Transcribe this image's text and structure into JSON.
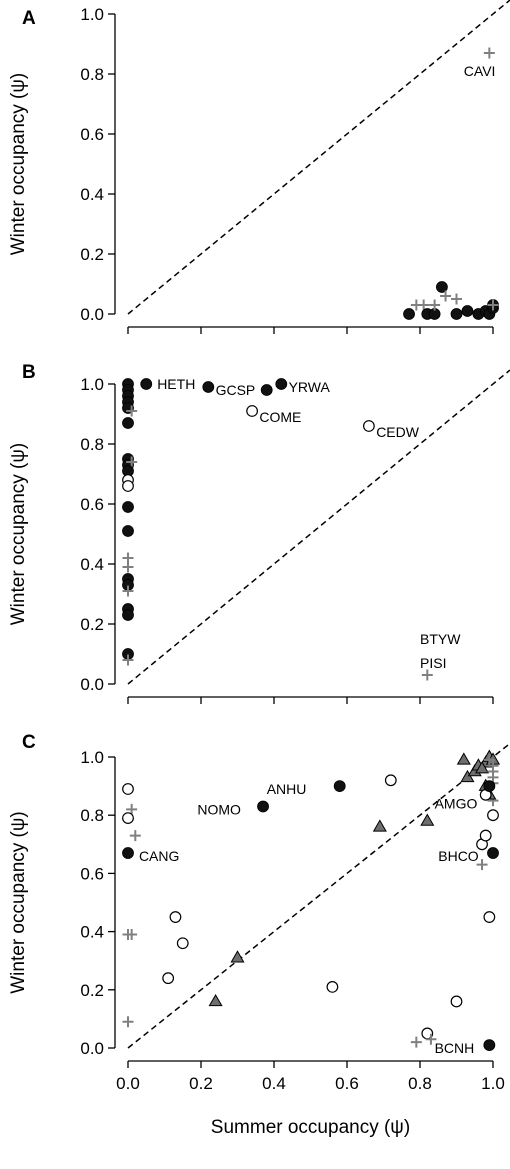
{
  "chart_data": {
    "type": "scatter",
    "xlabel": "Summer occupancy (ψ)",
    "ylabel": "Winter occupancy (ψ)",
    "xlim": [
      0,
      1
    ],
    "ylim": [
      0,
      1
    ],
    "x_ticks": [
      "0.0",
      "0.2",
      "0.4",
      "0.6",
      "0.8",
      "1.0"
    ],
    "y_ticks": [
      "0.0",
      "0.2",
      "0.4",
      "0.6",
      "0.8",
      "1.0"
    ],
    "reference_line": "1:1 dashed diagonal",
    "grid": false,
    "colors": {
      "filled": "#111111",
      "plus": "#808080",
      "triangle": "#6e6e6e",
      "open_stroke": "#000000"
    },
    "panels": [
      {
        "letter": "A",
        "points": [
          {
            "marker": "plus",
            "x": 0.99,
            "y": 0.87
          },
          {
            "marker": "filled",
            "x": 0.77,
            "y": 0.0
          },
          {
            "marker": "plus",
            "x": 0.79,
            "y": 0.03
          },
          {
            "marker": "plus",
            "x": 0.81,
            "y": 0.03
          },
          {
            "marker": "filled",
            "x": 0.82,
            "y": 0.0
          },
          {
            "marker": "filled",
            "x": 0.84,
            "y": 0.0
          },
          {
            "marker": "plus",
            "x": 0.84,
            "y": 0.03
          },
          {
            "marker": "filled",
            "x": 0.86,
            "y": 0.09
          },
          {
            "marker": "plus",
            "x": 0.87,
            "y": 0.06
          },
          {
            "marker": "plus",
            "x": 0.9,
            "y": 0.05
          },
          {
            "marker": "filled",
            "x": 0.9,
            "y": 0.0
          },
          {
            "marker": "filled",
            "x": 0.93,
            "y": 0.01
          },
          {
            "marker": "filled",
            "x": 0.96,
            "y": 0.0
          },
          {
            "marker": "filled",
            "x": 0.98,
            "y": 0.01
          },
          {
            "marker": "filled",
            "x": 0.99,
            "y": 0.0
          },
          {
            "marker": "filled",
            "x": 1.0,
            "y": 0.02
          },
          {
            "marker": "filled",
            "x": 1.0,
            "y": 0.03
          },
          {
            "marker": "plus",
            "x": 1.0,
            "y": 0.03
          }
        ],
        "labels": [
          {
            "text": "CAVI",
            "x": 0.92,
            "y": 0.81
          }
        ]
      },
      {
        "letter": "B",
        "points": [
          {
            "marker": "filled",
            "x": 0.0,
            "y": 1.0
          },
          {
            "marker": "filled",
            "x": 0.0,
            "y": 0.98
          },
          {
            "marker": "filled",
            "x": 0.0,
            "y": 0.96
          },
          {
            "marker": "filled",
            "x": 0.0,
            "y": 0.94
          },
          {
            "marker": "filled",
            "x": 0.0,
            "y": 0.92
          },
          {
            "marker": "plus",
            "x": 0.01,
            "y": 0.91
          },
          {
            "marker": "filled",
            "x": 0.0,
            "y": 0.87
          },
          {
            "marker": "filled",
            "x": 0.0,
            "y": 0.75
          },
          {
            "marker": "filled",
            "x": 0.0,
            "y": 0.73
          },
          {
            "marker": "plus",
            "x": 0.01,
            "y": 0.74
          },
          {
            "marker": "filled",
            "x": 0.0,
            "y": 0.71
          },
          {
            "marker": "open",
            "x": 0.0,
            "y": 0.68
          },
          {
            "marker": "open",
            "x": 0.0,
            "y": 0.66
          },
          {
            "marker": "filled",
            "x": 0.0,
            "y": 0.59
          },
          {
            "marker": "filled",
            "x": 0.0,
            "y": 0.51
          },
          {
            "marker": "plus",
            "x": 0.0,
            "y": 0.42
          },
          {
            "marker": "plus",
            "x": 0.0,
            "y": 0.39
          },
          {
            "marker": "filled",
            "x": 0.0,
            "y": 0.35
          },
          {
            "marker": "filled",
            "x": 0.0,
            "y": 0.33
          },
          {
            "marker": "plus",
            "x": 0.0,
            "y": 0.31
          },
          {
            "marker": "filled",
            "x": 0.0,
            "y": 0.25
          },
          {
            "marker": "filled",
            "x": 0.0,
            "y": 0.23
          },
          {
            "marker": "filled",
            "x": 0.0,
            "y": 0.1
          },
          {
            "marker": "plus",
            "x": 0.0,
            "y": 0.08
          },
          {
            "marker": "filled",
            "x": 0.05,
            "y": 1.0
          },
          {
            "marker": "filled",
            "x": 0.22,
            "y": 0.99
          },
          {
            "marker": "filled",
            "x": 0.38,
            "y": 0.98
          },
          {
            "marker": "filled",
            "x": 0.42,
            "y": 1.0
          },
          {
            "marker": "open",
            "x": 0.34,
            "y": 0.91
          },
          {
            "marker": "open",
            "x": 0.66,
            "y": 0.86
          },
          {
            "marker": "plus",
            "x": 0.82,
            "y": 0.03
          }
        ],
        "labels": [
          {
            "text": "HETH",
            "x": 0.08,
            "y": 1.0
          },
          {
            "text": "GCSP",
            "x": 0.24,
            "y": 0.98
          },
          {
            "text": "YRWA",
            "x": 0.44,
            "y": 0.99
          },
          {
            "text": "COME",
            "x": 0.36,
            "y": 0.89
          },
          {
            "text": "CEDW",
            "x": 0.68,
            "y": 0.84
          },
          {
            "text": "BTYW",
            "x": 0.8,
            "y": 0.15
          },
          {
            "text": "PISI",
            "x": 0.8,
            "y": 0.07
          }
        ]
      },
      {
        "letter": "C",
        "points": [
          {
            "marker": "open",
            "x": 0.0,
            "y": 0.89
          },
          {
            "marker": "plus",
            "x": 0.01,
            "y": 0.82
          },
          {
            "marker": "open",
            "x": 0.0,
            "y": 0.79
          },
          {
            "marker": "plus",
            "x": 0.02,
            "y": 0.73
          },
          {
            "marker": "filled",
            "x": 0.0,
            "y": 0.67
          },
          {
            "marker": "plus",
            "x": 0.0,
            "y": 0.39
          },
          {
            "marker": "plus",
            "x": 0.01,
            "y": 0.39
          },
          {
            "marker": "plus",
            "x": 0.0,
            "y": 0.09
          },
          {
            "marker": "open",
            "x": 0.13,
            "y": 0.45
          },
          {
            "marker": "open",
            "x": 0.15,
            "y": 0.36
          },
          {
            "marker": "open",
            "x": 0.11,
            "y": 0.24
          },
          {
            "marker": "triangle",
            "x": 0.3,
            "y": 0.31
          },
          {
            "marker": "triangle",
            "x": 0.24,
            "y": 0.16
          },
          {
            "marker": "filled",
            "x": 0.37,
            "y": 0.83
          },
          {
            "marker": "filled",
            "x": 0.58,
            "y": 0.9
          },
          {
            "marker": "open",
            "x": 0.56,
            "y": 0.21
          },
          {
            "marker": "open",
            "x": 0.72,
            "y": 0.92
          },
          {
            "marker": "triangle",
            "x": 0.69,
            "y": 0.76
          },
          {
            "marker": "triangle",
            "x": 0.82,
            "y": 0.78
          },
          {
            "marker": "plus",
            "x": 0.79,
            "y": 0.02
          },
          {
            "marker": "open",
            "x": 0.82,
            "y": 0.05
          },
          {
            "marker": "plus",
            "x": 0.83,
            "y": 0.03
          },
          {
            "marker": "open",
            "x": 0.9,
            "y": 0.16
          },
          {
            "marker": "filled",
            "x": 0.99,
            "y": 0.01
          },
          {
            "marker": "open",
            "x": 0.99,
            "y": 0.45
          },
          {
            "marker": "plus",
            "x": 0.97,
            "y": 0.63
          },
          {
            "marker": "open",
            "x": 0.97,
            "y": 0.7
          },
          {
            "marker": "filled",
            "x": 1.0,
            "y": 0.67
          },
          {
            "marker": "open",
            "x": 0.98,
            "y": 0.73
          },
          {
            "marker": "open",
            "x": 1.0,
            "y": 0.8
          },
          {
            "marker": "plus",
            "x": 1.0,
            "y": 0.85
          },
          {
            "marker": "triangle",
            "x": 0.99,
            "y": 0.87
          },
          {
            "marker": "triangle",
            "x": 0.98,
            "y": 0.9
          },
          {
            "marker": "triangle",
            "x": 0.93,
            "y": 0.93
          },
          {
            "marker": "triangle",
            "x": 0.95,
            "y": 0.95
          },
          {
            "marker": "triangle",
            "x": 0.96,
            "y": 0.97
          },
          {
            "marker": "triangle",
            "x": 0.98,
            "y": 0.98
          },
          {
            "marker": "triangle",
            "x": 0.99,
            "y": 1.0
          },
          {
            "marker": "triangle",
            "x": 1.0,
            "y": 0.99
          },
          {
            "marker": "triangle",
            "x": 0.92,
            "y": 0.99
          },
          {
            "marker": "triangle",
            "x": 0.97,
            "y": 0.96
          },
          {
            "marker": "plus",
            "x": 1.0,
            "y": 0.97
          },
          {
            "marker": "plus",
            "x": 1.0,
            "y": 0.95
          },
          {
            "marker": "plus",
            "x": 1.0,
            "y": 0.93
          },
          {
            "marker": "plus",
            "x": 1.0,
            "y": 0.91
          },
          {
            "marker": "plus",
            "x": 0.99,
            "y": 0.99
          },
          {
            "marker": "open",
            "x": 0.98,
            "y": 0.87
          },
          {
            "marker": "filled",
            "x": 0.99,
            "y": 0.9
          }
        ],
        "labels": [
          {
            "text": "CANG",
            "x": 0.03,
            "y": 0.66
          },
          {
            "text": "NOMO",
            "x": 0.19,
            "y": 0.82
          },
          {
            "text": "ANHU",
            "x": 0.38,
            "y": 0.89
          },
          {
            "text": "AMGO",
            "x": 0.84,
            "y": 0.84
          },
          {
            "text": "BHCO",
            "x": 0.85,
            "y": 0.66
          },
          {
            "text": "BCNH",
            "x": 0.84,
            "y": 0.0
          }
        ]
      }
    ]
  }
}
